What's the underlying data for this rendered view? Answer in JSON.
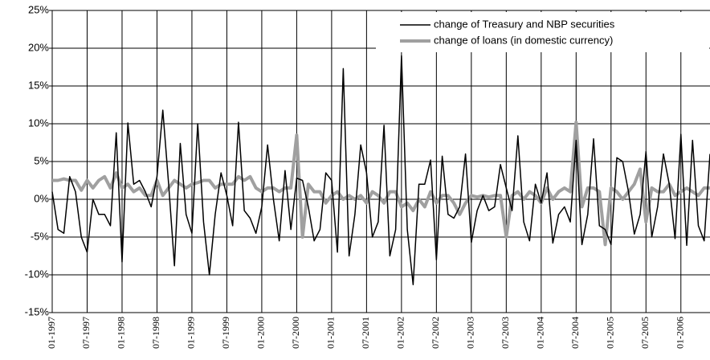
{
  "chart_data": {
    "type": "line",
    "categories": [
      "01-1997",
      null,
      null,
      null,
      null,
      null,
      "07-1997",
      null,
      null,
      null,
      null,
      null,
      "01-1998",
      null,
      null,
      null,
      null,
      null,
      "07-1998",
      null,
      null,
      null,
      null,
      null,
      "01-1999",
      null,
      null,
      null,
      null,
      null,
      "07-1999",
      null,
      null,
      null,
      null,
      null,
      "01-2000",
      null,
      null,
      null,
      null,
      null,
      "07-2000",
      null,
      null,
      null,
      null,
      null,
      "01-2001",
      null,
      null,
      null,
      null,
      null,
      "07-2001",
      null,
      null,
      null,
      null,
      null,
      "01-2002",
      null,
      null,
      null,
      null,
      null,
      "07-2002",
      null,
      null,
      null,
      null,
      null,
      "01-2003",
      null,
      null,
      null,
      null,
      null,
      "07-2003",
      null,
      null,
      null,
      null,
      null,
      "01-2004",
      null,
      null,
      null,
      null,
      null,
      "07-2004",
      null,
      null,
      null,
      null,
      null,
      "01-2005",
      null,
      null,
      null,
      null,
      null,
      "07-2005",
      null,
      null,
      null,
      null,
      null,
      "01-2006",
      null,
      null,
      null,
      null,
      null
    ],
    "series": [
      {
        "name": "change of Treasury and NBP securities",
        "color": "#000000",
        "width": 1.5,
        "values": [
          1,
          -4,
          -4.5,
          3,
          1,
          -5,
          -7,
          0,
          -2,
          -2,
          -3.5,
          8.8,
          -8.3,
          10.1,
          2,
          2.5,
          1,
          -1,
          3,
          11.8,
          2,
          -8.8,
          7.4,
          -2,
          -4.5,
          10,
          -3,
          -10,
          -2,
          3.5,
          0.5,
          -3.5,
          10.2,
          -1.5,
          -2.5,
          -4.5,
          -1,
          7.2,
          0,
          -5.5,
          3.8,
          -4,
          2.8,
          2.5,
          -1,
          -5.5,
          -4,
          3.5,
          2.5,
          -7,
          17.3,
          -7.5,
          -2,
          7.2,
          3.5,
          -5,
          -3,
          9.8,
          -7.5,
          -4,
          19,
          -4,
          -11.3,
          2,
          2,
          5.2,
          -8,
          5.7,
          -2,
          -2.5,
          -1,
          6,
          -5.7,
          -1.5,
          0.5,
          -1.5,
          -1,
          4.6,
          1.5,
          -1.5,
          8.4,
          -3,
          -5.5,
          2,
          -0.5,
          3.5,
          -5.8,
          -2,
          -1,
          -3,
          7.8,
          -6,
          -2,
          8,
          -3.5,
          -4,
          -6,
          5.5,
          5,
          1,
          -4.6,
          -2,
          6.3,
          -5,
          -1,
          6,
          2,
          -5.2,
          8.6,
          -6.1,
          7.8,
          -3.5,
          -5.5,
          6
        ]
      },
      {
        "name": "change of loans (in domestic currency)",
        "color": "#a0a0a0",
        "width": 4,
        "values": [
          2.5,
          2.5,
          2.7,
          2.5,
          2.5,
          1.2,
          2.5,
          1.5,
          2.5,
          3,
          1.5,
          3.5,
          1.5,
          2,
          1,
          1.5,
          0.5,
          0.5,
          2.5,
          0.5,
          1.5,
          2.5,
          2,
          1.5,
          2,
          2.2,
          2.5,
          2.5,
          1.5,
          2,
          2,
          2,
          3,
          2.5,
          3,
          1.5,
          1,
          1.5,
          1.5,
          1,
          1.5,
          1.5,
          8.5,
          -5,
          2,
          1,
          1,
          -0.5,
          0.5,
          1,
          0,
          0.5,
          0,
          0.5,
          -0.5,
          1,
          0.5,
          -0.5,
          1,
          1,
          -1,
          -0.5,
          -1.5,
          0,
          -1,
          1,
          -0.5,
          0.5,
          0.5,
          -0.5,
          -2,
          -0.5,
          0.5,
          0.3,
          0.5,
          0.3,
          0.5,
          0.5,
          -5,
          0.5,
          1,
          0,
          1,
          0.5,
          -0.5,
          1.5,
          0,
          1,
          1.5,
          1,
          10.2,
          -1,
          1.5,
          1.5,
          1,
          -6,
          1.5,
          1,
          0,
          1,
          2,
          4,
          -3,
          1.5,
          1,
          1,
          2,
          0.5,
          1,
          1.5,
          1,
          0.5,
          1.5,
          1.5
        ]
      }
    ],
    "ylim": [
      -15,
      25
    ],
    "yticks": [
      {
        "value": -15,
        "label": "-15%"
      },
      {
        "value": -10,
        "label": "-10%"
      },
      {
        "value": -5,
        "label": "-5%"
      },
      {
        "value": 0,
        "label": "0%"
      },
      {
        "value": 5,
        "label": "5%"
      },
      {
        "value": 10,
        "label": "10%"
      },
      {
        "value": 15,
        "label": "15%"
      },
      {
        "value": 20,
        "label": "20%"
      },
      {
        "value": 25,
        "label": "25%"
      }
    ],
    "grid": true,
    "legend": "upper right"
  }
}
